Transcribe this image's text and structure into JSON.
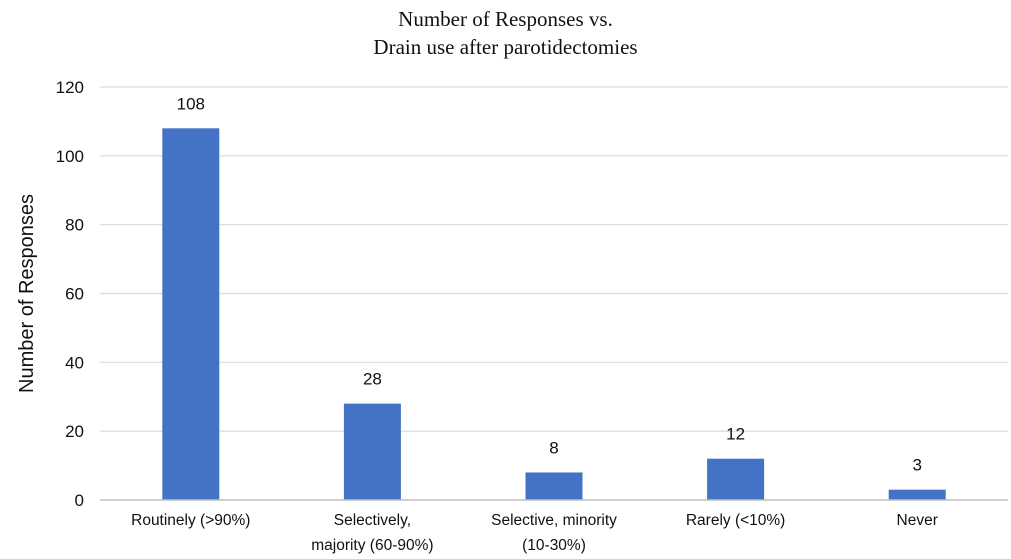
{
  "chart_data": {
    "type": "bar",
    "title": [
      "Number of Responses vs.",
      "Drain use after parotidectomies"
    ],
    "xlabel": "",
    "ylabel": "Number of Responses",
    "categories": [
      [
        "Routinely (>90%)"
      ],
      [
        "Selectively,",
        "majority (60-90%)"
      ],
      [
        "Selective, minority",
        "(10-30%)"
      ],
      [
        "Rarely (<10%)"
      ],
      [
        "Never"
      ]
    ],
    "values": [
      108,
      28,
      8,
      12,
      3
    ],
    "data_labels": [
      "108",
      "28",
      "8",
      "12",
      "3"
    ],
    "ylim": [
      0,
      120
    ],
    "yticks": [
      0,
      20,
      40,
      60,
      80,
      100,
      120
    ],
    "grid": true,
    "legend": "none",
    "colors": {
      "bar": "#4472C4",
      "grid": "#D9D9D9",
      "axis": "#BFBFBF"
    }
  }
}
